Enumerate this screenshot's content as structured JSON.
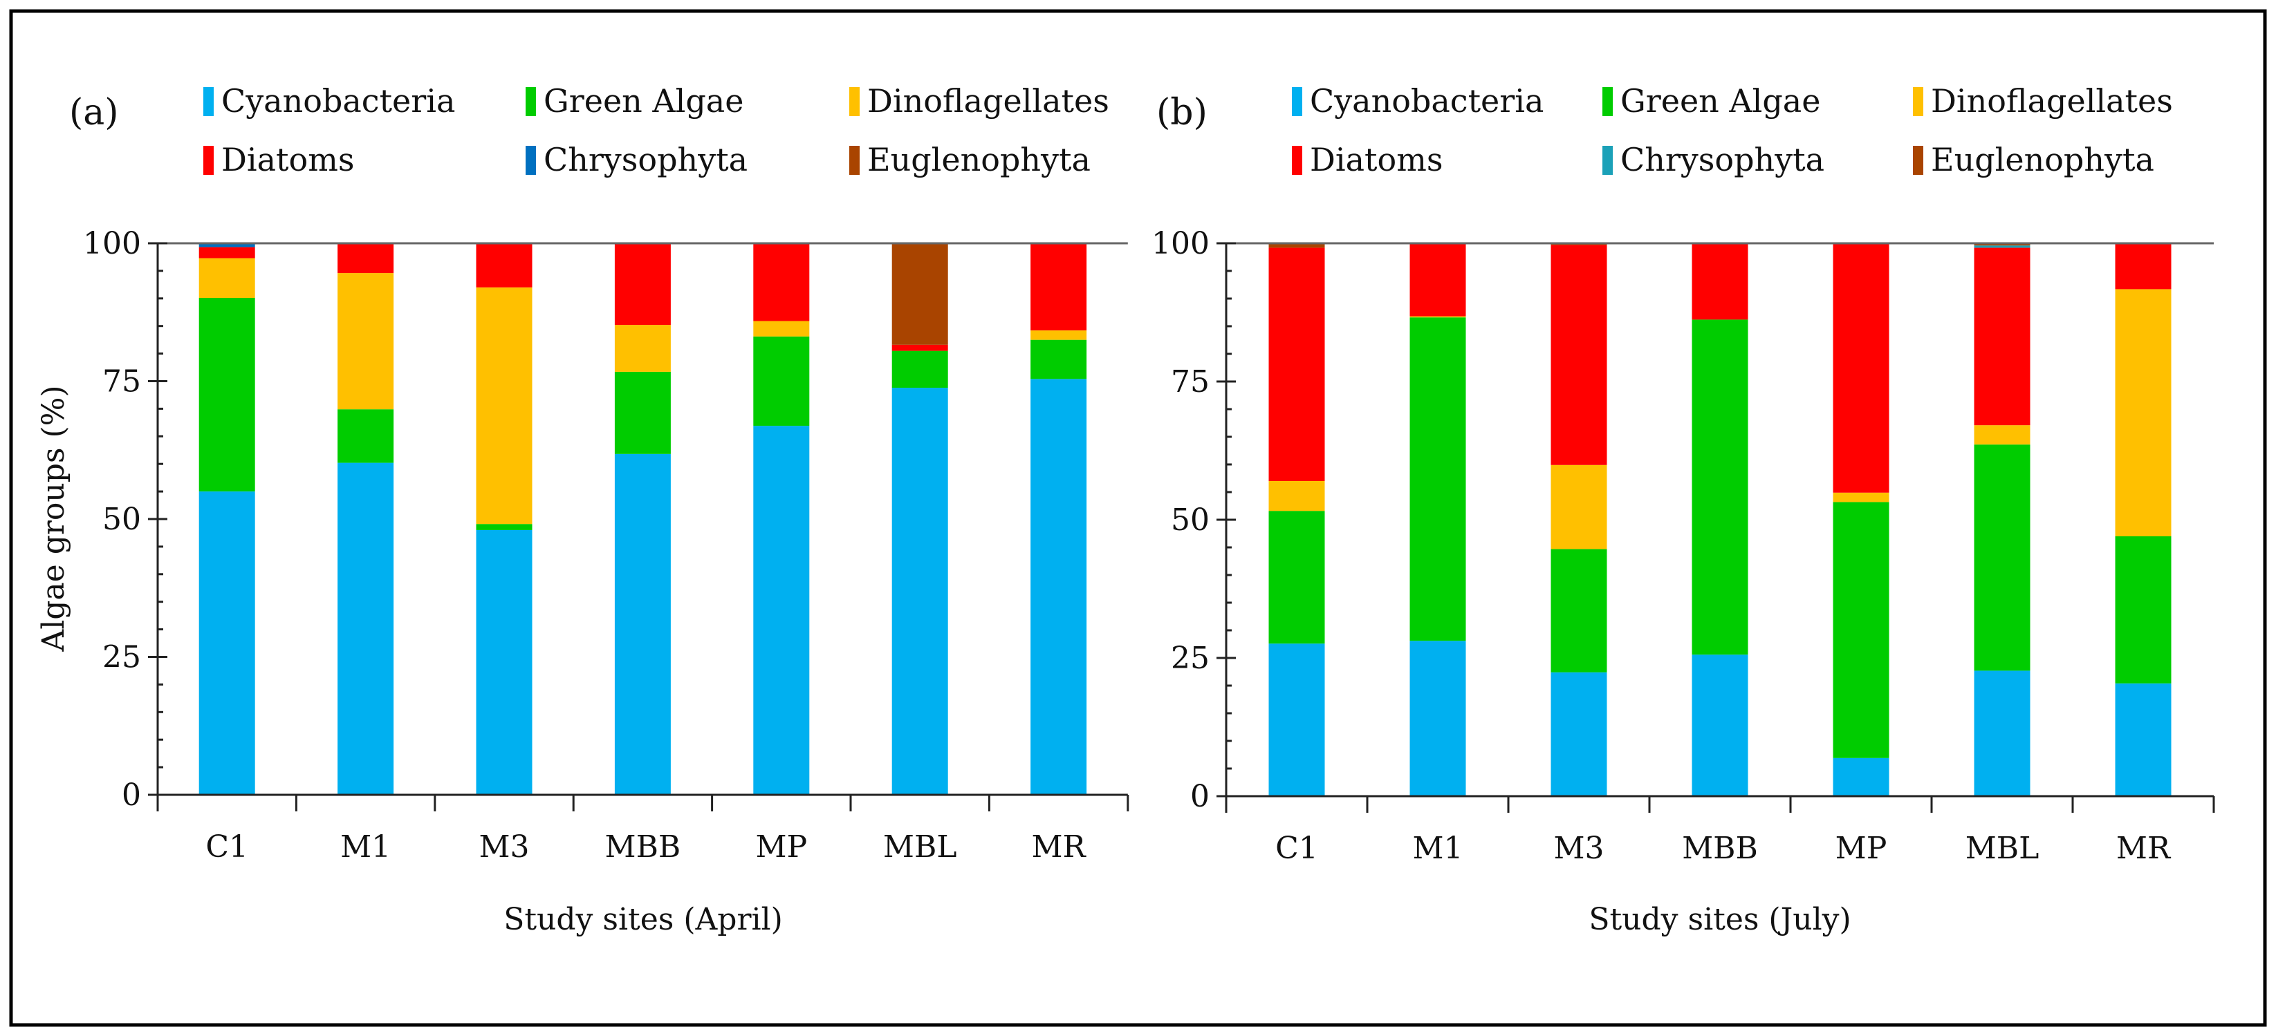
{
  "chart_data": [
    {
      "type": "bar",
      "stacked": true,
      "panel_label": "(a)",
      "title": "",
      "xlabel": "Study sites (April)",
      "ylabel": "Algae groups (%)",
      "ylim": [
        0,
        100
      ],
      "yticks": [
        "0",
        "25",
        "50",
        "75",
        "100"
      ],
      "categories": [
        "C1",
        "M1",
        "M3",
        "MBB",
        "MP",
        "MBL",
        "MR"
      ],
      "legend_placement": "top",
      "series": [
        {
          "name": "Cyanobacteria",
          "color": "#00B0F0",
          "values": [
            55.0,
            60.2,
            48.0,
            61.8,
            66.9,
            73.8,
            75.4
          ]
        },
        {
          "name": "Green Algae",
          "color": "#00CC00",
          "values": [
            35.1,
            9.7,
            1.1,
            14.9,
            16.2,
            6.7,
            7.1
          ]
        },
        {
          "name": "Dinoflagellates",
          "color": "#FFC000",
          "values": [
            7.2,
            24.7,
            42.9,
            8.5,
            2.8,
            0.0,
            1.7
          ]
        },
        {
          "name": "Diatoms",
          "color": "#FF0000",
          "values": [
            2.0,
            5.4,
            8.0,
            14.8,
            14.1,
            1.1,
            15.8
          ]
        },
        {
          "name": "Chrysophyta",
          "color": "#0070C0",
          "values": [
            0.7,
            0,
            0,
            0,
            0,
            0,
            0
          ]
        },
        {
          "name": "Euglenophyta",
          "color": "#A94400",
          "values": [
            0,
            0,
            0,
            0,
            0,
            18.4,
            0
          ]
        }
      ]
    },
    {
      "type": "bar",
      "stacked": true,
      "panel_label": "(b)",
      "title": "",
      "xlabel": "Study sites (July)",
      "ylabel": "",
      "ylim": [
        0,
        100
      ],
      "yticks": [
        "0",
        "25",
        "50",
        "75",
        "100"
      ],
      "categories": [
        "C1",
        "M1",
        "M3",
        "MBB",
        "MP",
        "MBL",
        "MR"
      ],
      "legend_placement": "top",
      "series": [
        {
          "name": "Cyanobacteria",
          "color": "#00B0F0",
          "values": [
            27.6,
            28.1,
            22.4,
            25.6,
            6.9,
            22.7,
            20.4
          ]
        },
        {
          "name": "Green Algae",
          "color": "#00CC00",
          "values": [
            24.0,
            58.5,
            22.3,
            60.6,
            46.3,
            40.9,
            26.6
          ]
        },
        {
          "name": "Dinoflagellates",
          "color": "#FFC000",
          "values": [
            5.4,
            0.2,
            15.2,
            0,
            1.7,
            3.5,
            44.7
          ]
        },
        {
          "name": "Diatoms",
          "color": "#FF0000",
          "values": [
            42.2,
            13.2,
            39.8,
            13.8,
            45.1,
            32.1,
            8.3
          ]
        },
        {
          "name": "Chrysophyta",
          "color": "#1BA1B8",
          "values": [
            0,
            0,
            0,
            0,
            0,
            0.4,
            0
          ]
        },
        {
          "name": "Euglenophyta",
          "color": "#A94400",
          "values": [
            0.8,
            0,
            0.3,
            0,
            0,
            0.4,
            0
          ]
        }
      ]
    }
  ]
}
